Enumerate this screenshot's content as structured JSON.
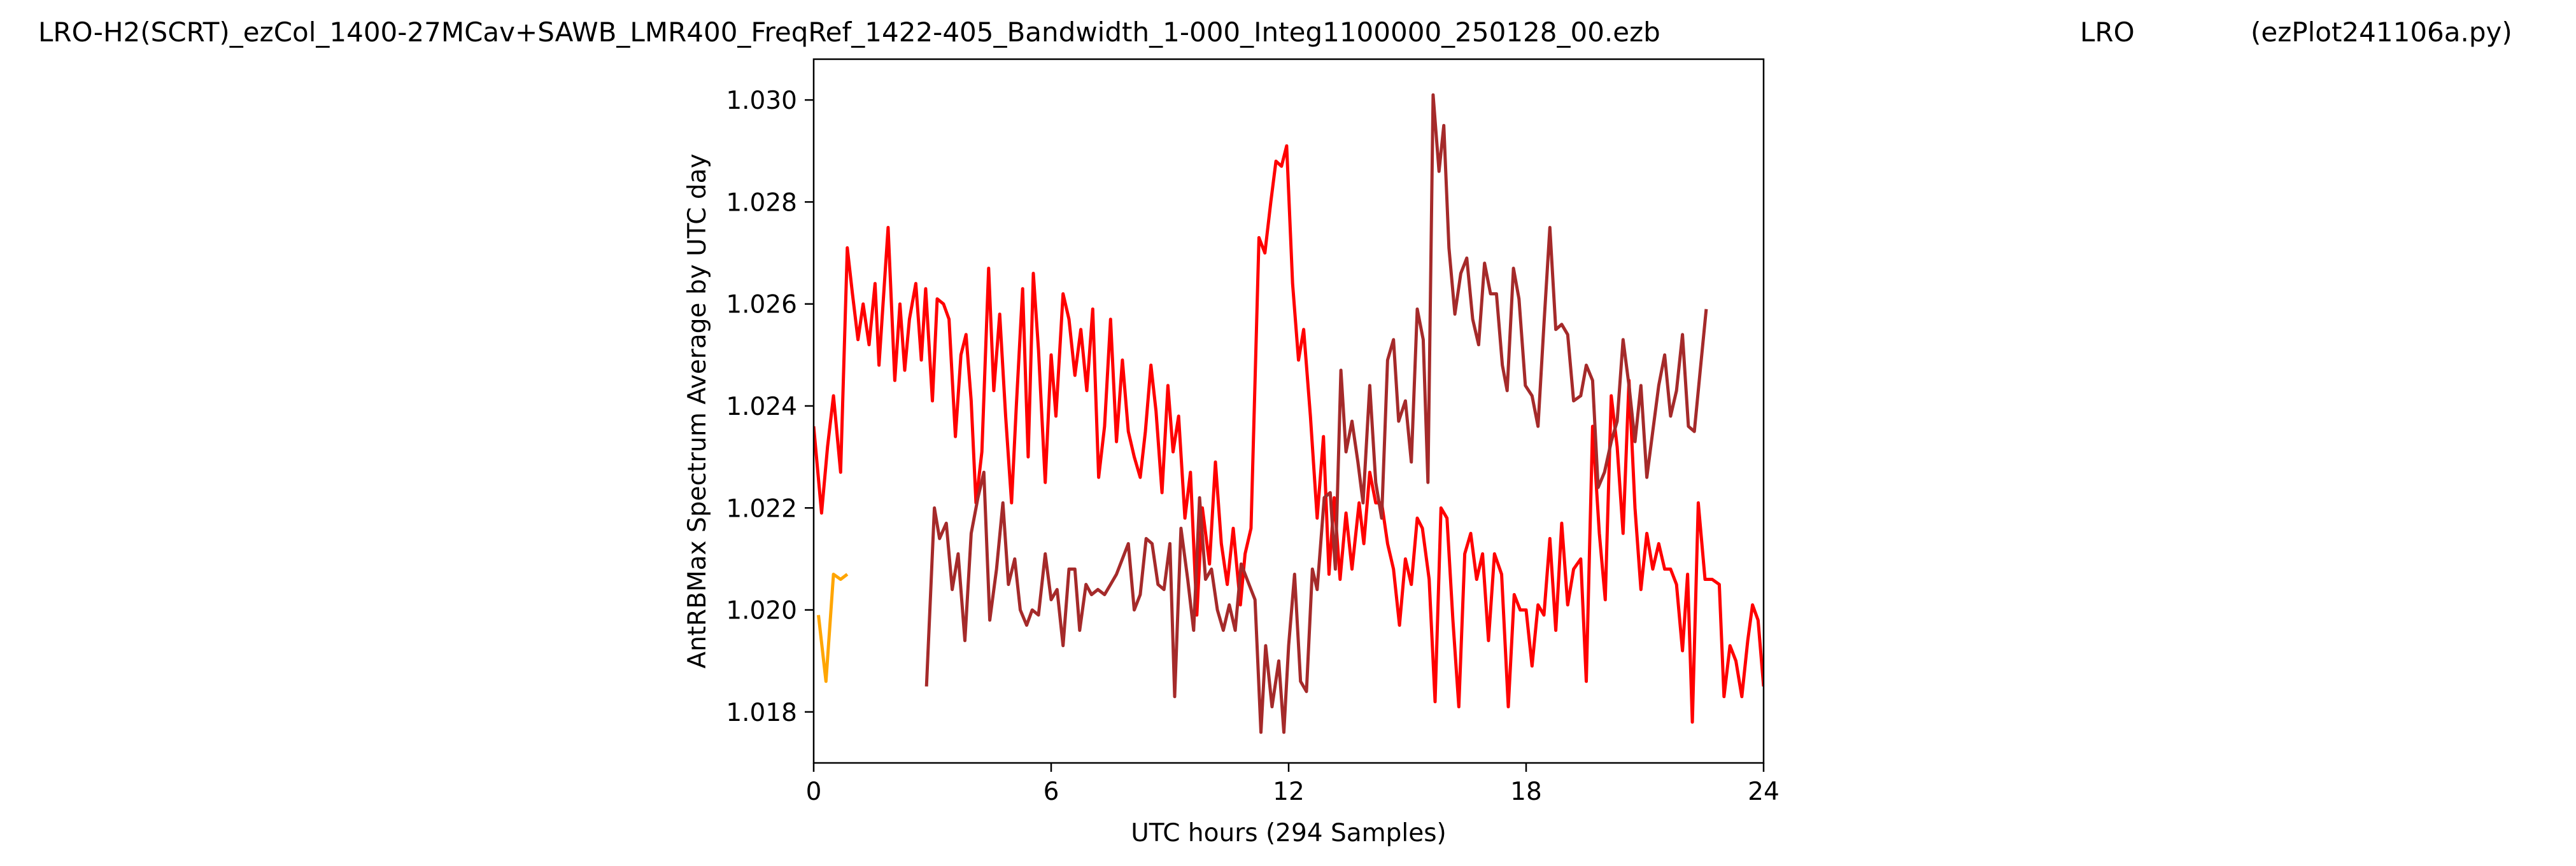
{
  "header": {
    "file_title": "LRO-H2(SCRT)_ezCol_1400-27MCav+SAWB_LMR400_FreqRef_1422-405_Bandwidth_1-000_Integ1100000_250128_00.ezb",
    "site": "LRO",
    "program": "(ezPlot241106a.py)"
  },
  "chart_data": {
    "type": "line",
    "xlabel": "UTC hours  (294 Samples)",
    "ylabel": "AntRBMax Spectrum Average by UTC day",
    "xlim": [
      0,
      24
    ],
    "ylim": [
      1.017,
      1.0308
    ],
    "xticks": [
      0,
      6,
      12,
      18,
      24
    ],
    "xtick_labels": [
      "0",
      "6",
      "12",
      "18",
      "24"
    ],
    "yticks": [
      1.018,
      1.02,
      1.022,
      1.024,
      1.026,
      1.028,
      1.03
    ],
    "ytick_labels": [
      "1.018",
      "1.020",
      "1.022",
      "1.024",
      "1.026",
      "1.028",
      "1.030"
    ],
    "grid": false,
    "series": [
      {
        "color": "#ffa500",
        "points": [
          [
            0.12,
            1.0199
          ],
          [
            0.31,
            1.0186
          ],
          [
            0.5,
            1.0207
          ],
          [
            0.68,
            1.0206
          ],
          [
            0.85,
            1.0207
          ]
        ]
      },
      {
        "color": "#ff0000",
        "points": [
          [
            0.0,
            1.0236
          ],
          [
            0.2,
            1.0219
          ],
          [
            0.35,
            1.0232
          ],
          [
            0.5,
            1.0242
          ],
          [
            0.68,
            1.0227
          ],
          [
            0.85,
            1.0271
          ],
          [
            0.98,
            1.0262
          ],
          [
            1.12,
            1.0253
          ],
          [
            1.25,
            1.026
          ],
          [
            1.4,
            1.0252
          ],
          [
            1.55,
            1.0264
          ],
          [
            1.65,
            1.0248
          ],
          [
            1.88,
            1.0275
          ],
          [
            2.05,
            1.0245
          ],
          [
            2.18,
            1.026
          ],
          [
            2.3,
            1.0247
          ],
          [
            2.42,
            1.0257
          ],
          [
            2.58,
            1.0264
          ],
          [
            2.72,
            1.0249
          ],
          [
            2.83,
            1.0263
          ],
          [
            3.0,
            1.0241
          ],
          [
            3.12,
            1.0261
          ],
          [
            3.28,
            1.026
          ],
          [
            3.42,
            1.0257
          ],
          [
            3.58,
            1.0234
          ],
          [
            3.72,
            1.025
          ],
          [
            3.85,
            1.0254
          ],
          [
            3.98,
            1.0241
          ],
          [
            4.1,
            1.0221
          ],
          [
            4.25,
            1.0231
          ],
          [
            4.42,
            1.0267
          ],
          [
            4.55,
            1.0243
          ],
          [
            4.7,
            1.0258
          ],
          [
            4.85,
            1.0238
          ],
          [
            5.0,
            1.0221
          ],
          [
            5.12,
            1.024
          ],
          [
            5.28,
            1.0263
          ],
          [
            5.42,
            1.023
          ],
          [
            5.55,
            1.0266
          ],
          [
            5.68,
            1.0251
          ],
          [
            5.85,
            1.0225
          ],
          [
            6.0,
            1.025
          ],
          [
            6.12,
            1.0238
          ],
          [
            6.3,
            1.0262
          ],
          [
            6.45,
            1.0257
          ],
          [
            6.6,
            1.0246
          ],
          [
            6.75,
            1.0255
          ],
          [
            6.9,
            1.0243
          ],
          [
            7.05,
            1.0259
          ],
          [
            7.2,
            1.0226
          ],
          [
            7.35,
            1.0236
          ],
          [
            7.5,
            1.0257
          ],
          [
            7.65,
            1.0233
          ],
          [
            7.8,
            1.0249
          ],
          [
            7.95,
            1.0235
          ],
          [
            8.1,
            1.023
          ],
          [
            8.25,
            1.0226
          ],
          [
            8.38,
            1.0235
          ],
          [
            8.52,
            1.0248
          ],
          [
            8.65,
            1.0239
          ],
          [
            8.8,
            1.0223
          ],
          [
            8.95,
            1.0244
          ],
          [
            9.08,
            1.0231
          ],
          [
            9.22,
            1.0238
          ],
          [
            9.38,
            1.0218
          ],
          [
            9.52,
            1.0227
          ],
          [
            9.68,
            1.0199
          ],
          [
            9.82,
            1.022
          ],
          [
            10.0,
            1.0209
          ],
          [
            10.15,
            1.0229
          ],
          [
            10.3,
            1.0213
          ],
          [
            10.45,
            1.0205
          ],
          [
            10.6,
            1.0216
          ],
          [
            10.78,
            1.0201
          ],
          [
            10.9,
            1.0211
          ],
          [
            11.05,
            1.0216
          ],
          [
            11.25,
            1.0273
          ],
          [
            11.4,
            1.027
          ],
          [
            11.55,
            1.028
          ],
          [
            11.68,
            1.0288
          ],
          [
            11.82,
            1.0287
          ],
          [
            11.95,
            1.0291
          ],
          [
            12.1,
            1.0264
          ],
          [
            12.25,
            1.0249
          ],
          [
            12.38,
            1.0255
          ],
          [
            12.55,
            1.0238
          ],
          [
            12.72,
            1.0218
          ],
          [
            12.88,
            1.0234
          ],
          [
            13.02,
            1.0207
          ],
          [
            13.15,
            1.0222
          ],
          [
            13.3,
            1.0206
          ],
          [
            13.45,
            1.0219
          ],
          [
            13.6,
            1.0208
          ],
          [
            13.78,
            1.0221
          ],
          [
            13.9,
            1.0213
          ],
          [
            14.05,
            1.0227
          ],
          [
            14.2,
            1.0221
          ],
          [
            14.35,
            1.0221
          ],
          [
            14.5,
            1.0213
          ],
          [
            14.65,
            1.0208
          ],
          [
            14.8,
            1.0197
          ],
          [
            14.95,
            1.021
          ],
          [
            15.1,
            1.0205
          ],
          [
            15.25,
            1.0218
          ],
          [
            15.38,
            1.0216
          ],
          [
            15.55,
            1.0206
          ],
          [
            15.7,
            1.0182
          ],
          [
            15.85,
            1.022
          ],
          [
            16.0,
            1.0218
          ],
          [
            16.15,
            1.0198
          ],
          [
            16.3,
            1.0181
          ],
          [
            16.45,
            1.0211
          ],
          [
            16.6,
            1.0215
          ],
          [
            16.75,
            1.0206
          ],
          [
            16.9,
            1.0211
          ],
          [
            17.05,
            1.0194
          ],
          [
            17.2,
            1.0211
          ],
          [
            17.38,
            1.0207
          ],
          [
            17.55,
            1.0181
          ],
          [
            17.7,
            1.0203
          ],
          [
            17.85,
            1.02
          ],
          [
            18.0,
            1.02
          ],
          [
            18.15,
            1.0189
          ],
          [
            18.3,
            1.0201
          ],
          [
            18.45,
            1.0199
          ],
          [
            18.6,
            1.0214
          ],
          [
            18.75,
            1.0196
          ],
          [
            18.9,
            1.0217
          ],
          [
            19.05,
            1.0201
          ],
          [
            19.2,
            1.0208
          ],
          [
            19.38,
            1.021
          ],
          [
            19.52,
            1.0186
          ],
          [
            19.68,
            1.0236
          ],
          [
            19.85,
            1.0215
          ],
          [
            20.0,
            1.0202
          ],
          [
            20.15,
            1.0242
          ],
          [
            20.3,
            1.0232
          ],
          [
            20.45,
            1.0215
          ],
          [
            20.6,
            1.0245
          ],
          [
            20.75,
            1.022
          ],
          [
            20.9,
            1.0204
          ],
          [
            21.05,
            1.0215
          ],
          [
            21.2,
            1.0208
          ],
          [
            21.35,
            1.0213
          ],
          [
            21.5,
            1.0208
          ],
          [
            21.65,
            1.0208
          ],
          [
            21.8,
            1.0205
          ],
          [
            21.95,
            1.0192
          ],
          [
            22.08,
            1.0207
          ],
          [
            22.2,
            1.0178
          ],
          [
            22.35,
            1.0221
          ],
          [
            22.52,
            1.0206
          ],
          [
            22.7,
            1.0206
          ],
          [
            22.88,
            1.0205
          ],
          [
            23.0,
            1.0183
          ],
          [
            23.15,
            1.0193
          ],
          [
            23.3,
            1.019
          ],
          [
            23.45,
            1.0183
          ],
          [
            23.6,
            1.0194
          ],
          [
            23.72,
            1.0201
          ],
          [
            23.86,
            1.0198
          ],
          [
            24.0,
            1.0185
          ]
        ]
      },
      {
        "color": "#a52a2a",
        "points": [
          [
            2.85,
            1.0185
          ],
          [
            3.05,
            1.022
          ],
          [
            3.18,
            1.0214
          ],
          [
            3.35,
            1.0217
          ],
          [
            3.5,
            1.0204
          ],
          [
            3.65,
            1.0211
          ],
          [
            3.82,
            1.0194
          ],
          [
            3.98,
            1.0215
          ],
          [
            4.15,
            1.0222
          ],
          [
            4.3,
            1.0227
          ],
          [
            4.45,
            1.0198
          ],
          [
            4.62,
            1.0208
          ],
          [
            4.78,
            1.0221
          ],
          [
            4.92,
            1.0205
          ],
          [
            5.08,
            1.021
          ],
          [
            5.22,
            1.02
          ],
          [
            5.38,
            1.0197
          ],
          [
            5.52,
            1.02
          ],
          [
            5.68,
            1.0199
          ],
          [
            5.85,
            1.0211
          ],
          [
            6.0,
            1.0202
          ],
          [
            6.15,
            1.0204
          ],
          [
            6.3,
            1.0193
          ],
          [
            6.45,
            1.0208
          ],
          [
            6.6,
            1.0208
          ],
          [
            6.72,
            1.0196
          ],
          [
            6.88,
            1.0205
          ],
          [
            7.02,
            1.0203
          ],
          [
            7.18,
            1.0204
          ],
          [
            7.35,
            1.0203
          ],
          [
            7.5,
            1.0205
          ],
          [
            7.65,
            1.0207
          ],
          [
            7.8,
            1.021
          ],
          [
            7.95,
            1.0213
          ],
          [
            8.1,
            1.02
          ],
          [
            8.25,
            1.0203
          ],
          [
            8.4,
            1.0214
          ],
          [
            8.55,
            1.0213
          ],
          [
            8.7,
            1.0205
          ],
          [
            8.85,
            1.0204
          ],
          [
            9.0,
            1.0213
          ],
          [
            9.12,
            1.0183
          ],
          [
            9.28,
            1.0216
          ],
          [
            9.45,
            1.0206
          ],
          [
            9.6,
            1.0196
          ],
          [
            9.75,
            1.0222
          ],
          [
            9.9,
            1.0206
          ],
          [
            10.05,
            1.0208
          ],
          [
            10.2,
            1.02
          ],
          [
            10.35,
            1.0196
          ],
          [
            10.5,
            1.0201
          ],
          [
            10.65,
            1.0196
          ],
          [
            10.8,
            1.0209
          ],
          [
            11.0,
            1.0205
          ],
          [
            11.15,
            1.0202
          ],
          [
            11.3,
            1.0176
          ],
          [
            11.42,
            1.0193
          ],
          [
            11.58,
            1.0181
          ],
          [
            11.75,
            1.019
          ],
          [
            11.88,
            1.0176
          ],
          [
            12.0,
            1.0193
          ],
          [
            12.15,
            1.0207
          ],
          [
            12.3,
            1.0186
          ],
          [
            12.45,
            1.0184
          ],
          [
            12.6,
            1.0208
          ],
          [
            12.72,
            1.0204
          ],
          [
            12.9,
            1.0222
          ],
          [
            13.05,
            1.0223
          ],
          [
            13.18,
            1.0208
          ],
          [
            13.32,
            1.0247
          ],
          [
            13.45,
            1.0231
          ],
          [
            13.6,
            1.0237
          ],
          [
            13.75,
            1.0229
          ],
          [
            13.88,
            1.0221
          ],
          [
            14.05,
            1.0244
          ],
          [
            14.2,
            1.0225
          ],
          [
            14.35,
            1.0218
          ],
          [
            14.5,
            1.0249
          ],
          [
            14.65,
            1.0253
          ],
          [
            14.78,
            1.0237
          ],
          [
            14.95,
            1.0241
          ],
          [
            15.1,
            1.0229
          ],
          [
            15.25,
            1.0259
          ],
          [
            15.4,
            1.0253
          ],
          [
            15.52,
            1.0225
          ],
          [
            15.65,
            1.0301
          ],
          [
            15.8,
            1.0286
          ],
          [
            15.92,
            1.0295
          ],
          [
            16.05,
            1.0271
          ],
          [
            16.2,
            1.0258
          ],
          [
            16.35,
            1.0266
          ],
          [
            16.5,
            1.0269
          ],
          [
            16.65,
            1.0257
          ],
          [
            16.8,
            1.0252
          ],
          [
            16.95,
            1.0268
          ],
          [
            17.1,
            1.0262
          ],
          [
            17.25,
            1.0262
          ],
          [
            17.4,
            1.0248
          ],
          [
            17.52,
            1.0243
          ],
          [
            17.68,
            1.0267
          ],
          [
            17.82,
            1.0261
          ],
          [
            17.98,
            1.0244
          ],
          [
            18.15,
            1.0242
          ],
          [
            18.3,
            1.0236
          ],
          [
            18.45,
            1.0256
          ],
          [
            18.6,
            1.0275
          ],
          [
            18.75,
            1.0255
          ],
          [
            18.9,
            1.0256
          ],
          [
            19.05,
            1.0254
          ],
          [
            19.2,
            1.0241
          ],
          [
            19.38,
            1.0242
          ],
          [
            19.52,
            1.0248
          ],
          [
            19.68,
            1.0245
          ],
          [
            19.82,
            1.0224
          ],
          [
            19.98,
            1.0227
          ],
          [
            20.15,
            1.0233
          ],
          [
            20.3,
            1.0237
          ],
          [
            20.45,
            1.0253
          ],
          [
            20.6,
            1.0244
          ],
          [
            20.75,
            1.0233
          ],
          [
            20.9,
            1.0244
          ],
          [
            21.05,
            1.0226
          ],
          [
            21.2,
            1.0235
          ],
          [
            21.35,
            1.0244
          ],
          [
            21.5,
            1.025
          ],
          [
            21.65,
            1.0238
          ],
          [
            21.8,
            1.0243
          ],
          [
            21.95,
            1.0254
          ],
          [
            22.1,
            1.0236
          ],
          [
            22.25,
            1.0235
          ],
          [
            22.4,
            1.0247
          ],
          [
            22.55,
            1.0259
          ]
        ]
      }
    ]
  }
}
